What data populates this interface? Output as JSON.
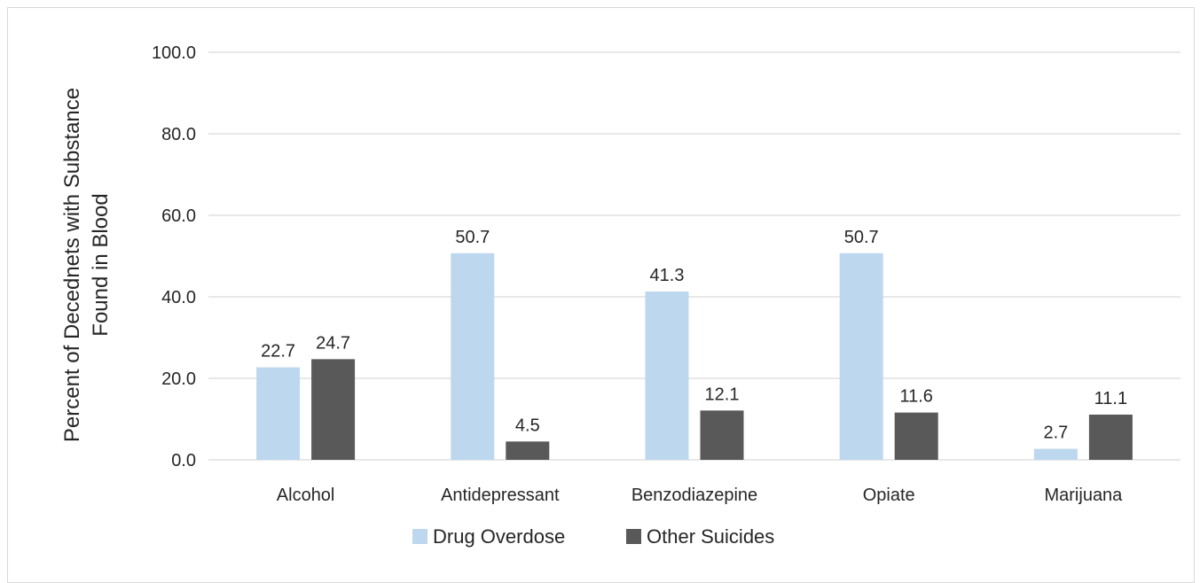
{
  "chart_data": {
    "type": "bar",
    "title": "",
    "xlabel": "",
    "ylabel_lines": [
      "Percent  of Decednets with Substance",
      "Found in Blood"
    ],
    "ylim": [
      0,
      100
    ],
    "yticks": [
      "0.0",
      "20.0",
      "40.0",
      "60.0",
      "80.0",
      "100.0"
    ],
    "ytick_values": [
      0,
      20,
      40,
      60,
      80,
      100
    ],
    "categories": [
      "Alcohol",
      "Antidepressant",
      "Benzodiazepine",
      "Opiate",
      "Marijuana"
    ],
    "series": [
      {
        "name": "Drug Overdose",
        "color": "#bdd7ee",
        "values": [
          22.7,
          50.7,
          41.3,
          50.7,
          2.7
        ],
        "labels": [
          "22.7",
          "50.7",
          "41.3",
          "50.7",
          "2.7"
        ]
      },
      {
        "name": "Other Suicides",
        "color": "#595959",
        "values": [
          24.7,
          4.5,
          12.1,
          11.6,
          11.1
        ],
        "labels": [
          "24.7",
          "4.5",
          "12.1",
          "11.6",
          "11.1"
        ]
      }
    ],
    "grid": true,
    "legend_position": "bottom"
  }
}
